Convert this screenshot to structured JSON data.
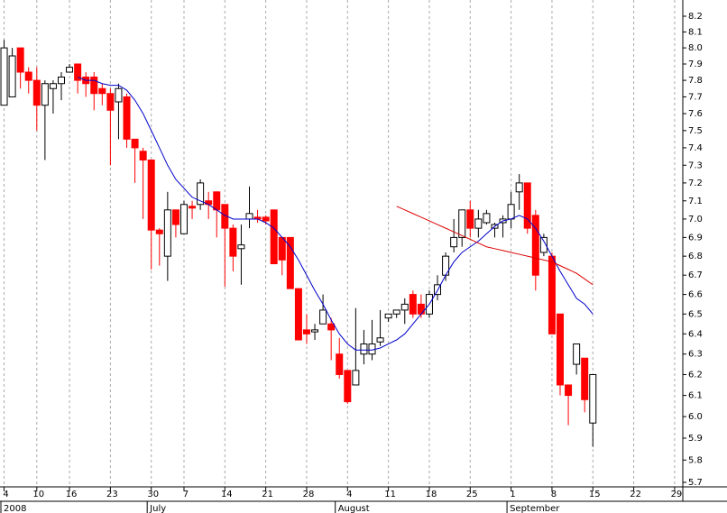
{
  "chart_data": {
    "type": "candlestick",
    "open": [
      7.65,
      7.7,
      8.0,
      7.85,
      7.8,
      7.65,
      7.75,
      7.78,
      7.85,
      7.9,
      7.82,
      7.82,
      7.75,
      7.72,
      7.67,
      7.7,
      7.45,
      7.38,
      7.33,
      6.94,
      6.8,
      7.05,
      6.92,
      7.07,
      7.08,
      7.1,
      7.15,
      7.08,
      6.95,
      6.84,
      7.0,
      7.01,
      7.01,
      7.05,
      6.9,
      6.9,
      6.63,
      6.42,
      6.41,
      6.45,
      6.45,
      6.3,
      6.22,
      6.15,
      6.3,
      6.3,
      6.36,
      6.48,
      6.5,
      6.52,
      6.6,
      6.55,
      6.5,
      6.6,
      6.7,
      6.85,
      6.9,
      7.05,
      6.95,
      6.98,
      6.95,
      6.98,
      7.0,
      7.15,
      7.2,
      7.02,
      6.82,
      6.8,
      6.5,
      6.15,
      6.25,
      6.28,
      5.97
    ],
    "high": [
      8.05,
      8.0,
      8.0,
      7.88,
      7.88,
      7.8,
      7.8,
      7.85,
      7.9,
      7.9,
      7.85,
      7.85,
      7.78,
      7.75,
      7.78,
      7.72,
      7.45,
      7.4,
      7.33,
      6.95,
      7.15,
      7.05,
      7.1,
      7.1,
      7.22,
      7.15,
      7.15,
      7.08,
      6.97,
      6.97,
      7.18,
      7.05,
      7.02,
      7.05,
      6.9,
      6.9,
      6.63,
      6.5,
      6.45,
      6.6,
      6.48,
      6.38,
      6.22,
      6.53,
      6.42,
      6.47,
      6.52,
      6.5,
      6.52,
      6.58,
      6.62,
      6.6,
      6.62,
      6.7,
      6.82,
      7.0,
      7.05,
      7.1,
      7.05,
      7.05,
      6.98,
      7.02,
      7.15,
      7.25,
      7.2,
      7.05,
      6.92,
      6.82,
      6.5,
      6.15,
      6.35,
      6.28,
      6.2
    ],
    "low": [
      7.65,
      7.7,
      7.75,
      7.72,
      7.5,
      7.33,
      7.6,
      7.68,
      7.85,
      7.72,
      7.7,
      7.62,
      7.65,
      7.3,
      7.45,
      7.4,
      7.2,
      7.0,
      6.73,
      6.75,
      6.67,
      6.9,
      6.92,
      7.0,
      7.05,
      7.0,
      6.9,
      6.64,
      6.72,
      6.65,
      6.95,
      6.98,
      6.97,
      6.76,
      6.7,
      6.63,
      6.37,
      6.35,
      6.37,
      6.45,
      6.27,
      6.18,
      6.06,
      6.15,
      6.25,
      6.27,
      6.34,
      6.46,
      6.48,
      6.45,
      6.48,
      6.48,
      6.48,
      6.57,
      6.67,
      6.82,
      6.85,
      6.9,
      6.9,
      6.97,
      6.9,
      6.9,
      6.95,
      7.05,
      6.92,
      6.62,
      6.8,
      6.4,
      6.1,
      5.96,
      6.2,
      6.02,
      5.86
    ],
    "close": [
      8.0,
      7.95,
      7.85,
      7.8,
      7.65,
      7.78,
      7.78,
      7.82,
      7.88,
      7.8,
      7.78,
      7.72,
      7.72,
      7.62,
      7.75,
      7.45,
      7.4,
      7.33,
      6.94,
      6.92,
      7.05,
      6.97,
      7.08,
      7.06,
      7.2,
      7.08,
      7.05,
      6.95,
      6.8,
      6.86,
      7.03,
      7.0,
      6.99,
      6.76,
      6.78,
      6.63,
      6.37,
      6.4,
      6.42,
      6.52,
      6.42,
      6.2,
      6.07,
      6.22,
      6.35,
      6.35,
      6.38,
      6.5,
      6.52,
      6.55,
      6.5,
      6.5,
      6.6,
      6.65,
      6.8,
      6.9,
      7.05,
      6.95,
      7.0,
      7.03,
      6.97,
      7.0,
      7.08,
      7.2,
      6.95,
      6.7,
      6.9,
      6.4,
      6.15,
      6.1,
      6.35,
      6.08,
      6.2
    ],
    "up_color": "#ffffff",
    "down_color": "#ff0000",
    "series": [
      {
        "color": "#0000cc",
        "values": [
          null,
          null,
          null,
          null,
          null,
          null,
          null,
          null,
          null,
          7.82,
          7.8,
          7.8,
          7.78,
          7.77,
          7.77,
          7.74,
          7.68,
          7.6,
          7.5,
          7.4,
          7.3,
          7.22,
          7.17,
          7.12,
          7.1,
          7.08,
          7.05,
          7.02,
          7.0,
          7.0,
          7.0,
          7.0,
          6.98,
          6.95,
          6.9,
          6.85,
          6.78,
          6.7,
          6.62,
          6.55,
          6.47,
          6.4,
          6.35,
          6.32,
          6.32,
          6.32,
          6.33,
          6.35,
          6.37,
          6.4,
          6.45,
          6.5,
          6.55,
          6.62,
          6.7,
          6.77,
          6.82,
          6.85,
          6.88,
          6.92,
          6.96,
          6.99,
          7.0,
          7.02,
          7.0,
          6.95,
          6.88,
          6.8,
          6.72,
          6.65,
          6.58,
          6.55,
          6.5
        ]
      },
      {
        "color": "#dd0000",
        "values": [
          null,
          null,
          null,
          null,
          null,
          null,
          null,
          null,
          null,
          null,
          null,
          null,
          null,
          null,
          null,
          null,
          null,
          null,
          null,
          null,
          null,
          null,
          null,
          null,
          null,
          null,
          null,
          null,
          null,
          null,
          null,
          null,
          null,
          null,
          null,
          null,
          null,
          null,
          null,
          null,
          null,
          null,
          null,
          null,
          null,
          null,
          null,
          null,
          7.07,
          7.05,
          7.03,
          7.01,
          6.99,
          6.97,
          6.95,
          6.93,
          6.91,
          6.89,
          6.87,
          6.85,
          6.84,
          6.83,
          6.82,
          6.81,
          6.8,
          6.79,
          6.78,
          6.77,
          6.75,
          6.73,
          6.71,
          6.68,
          6.65
        ]
      }
    ],
    "xlim": [
      -0.5,
      83
    ],
    "xticks": [
      {
        "value": 0,
        "label": "4"
      },
      {
        "value": 4,
        "label": "10"
      },
      {
        "value": 8,
        "label": "16"
      },
      {
        "value": 13,
        "label": "23"
      },
      {
        "value": 18,
        "label": "30"
      },
      {
        "value": 22,
        "label": "7"
      },
      {
        "value": 27,
        "label": "14"
      },
      {
        "value": 32,
        "label": "21"
      },
      {
        "value": 37,
        "label": "28"
      },
      {
        "value": 42,
        "label": "4"
      },
      {
        "value": 47,
        "label": "11"
      },
      {
        "value": 52,
        "label": "18"
      },
      {
        "value": 57,
        "label": "25"
      },
      {
        "value": 62,
        "label": "1"
      },
      {
        "value": 67,
        "label": "8"
      },
      {
        "value": 72,
        "label": "15"
      },
      {
        "value": 77,
        "label": "22"
      },
      {
        "value": 82,
        "label": "29"
      }
    ],
    "month_labels": [
      {
        "value": -0.5,
        "label": "2008"
      },
      {
        "value": 17.5,
        "label": "July"
      },
      {
        "value": 40.5,
        "label": "August"
      },
      {
        "value": 61.5,
        "label": "September"
      }
    ],
    "ylim": [
      5.7,
      8.2
    ],
    "yticks": [
      5.7,
      5.8,
      5.9,
      {
        "value": 6,
        "label": "6.0"
      },
      6.1,
      6.2,
      6.3,
      6.4,
      6.5,
      6.6,
      6.7,
      6.8,
      6.9,
      {
        "value": 7,
        "label": "7.0"
      },
      7.1,
      7.2,
      7.3,
      7.4,
      7.5,
      7.6,
      7.7,
      7.8,
      7.9,
      {
        "value": 8,
        "label": "8.0"
      },
      8.1,
      8.2
    ],
    "log_scale": true,
    "grid": "x"
  }
}
